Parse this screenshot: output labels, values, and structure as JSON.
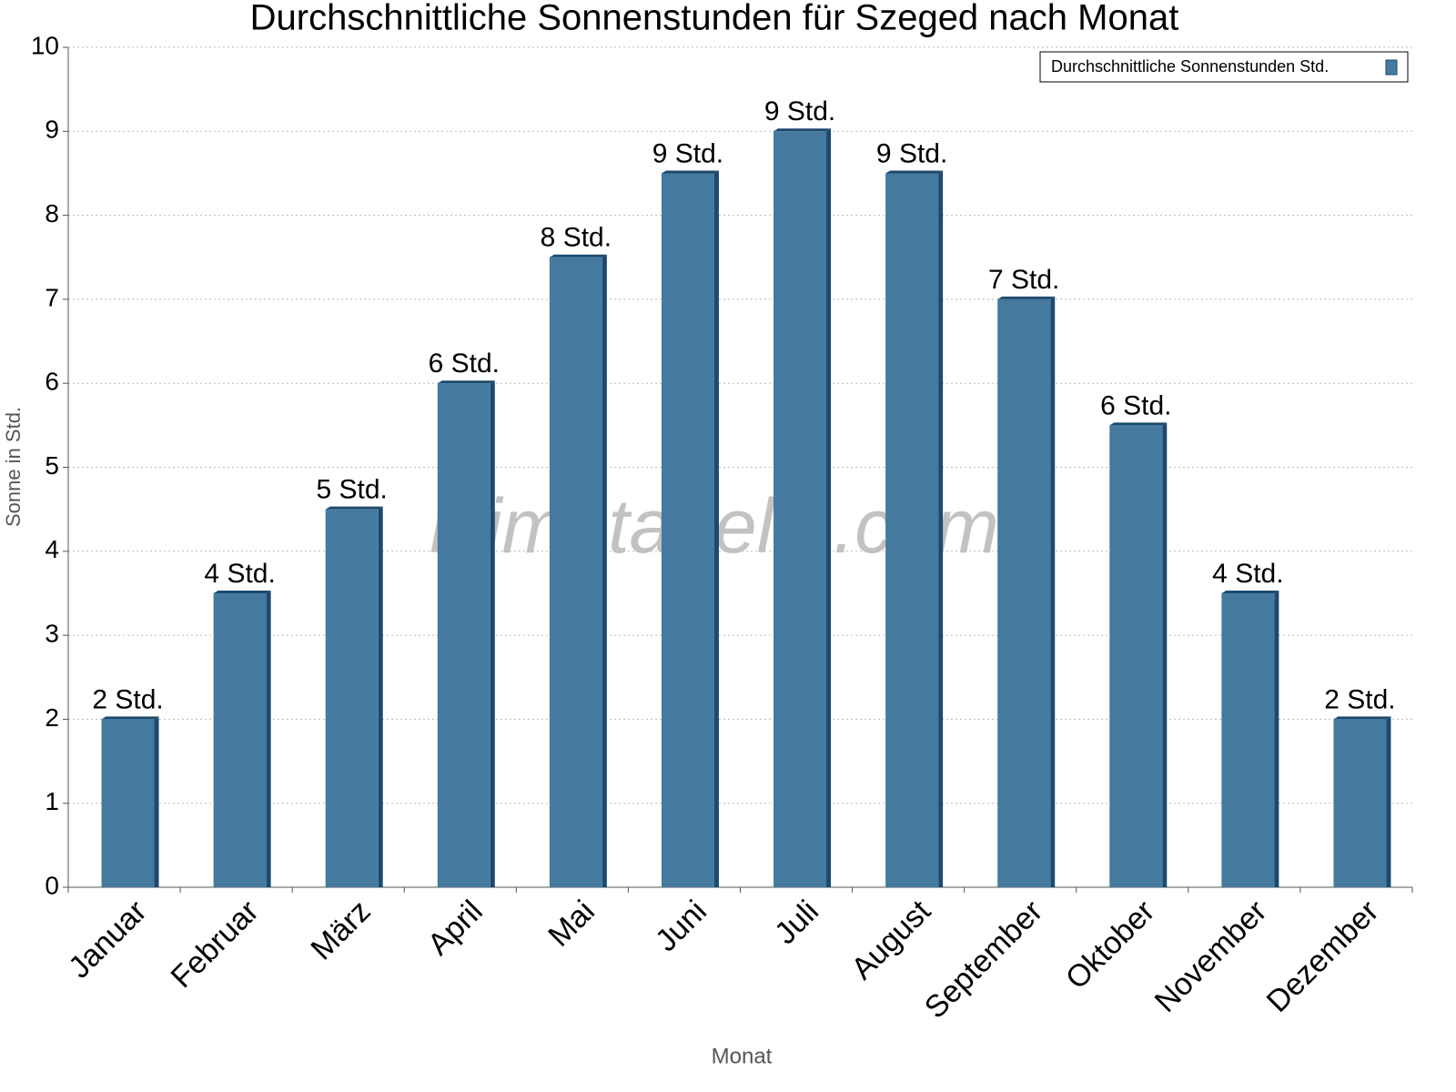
{
  "chart_data": {
    "type": "bar",
    "title": "Durchschnittliche Sonnenstunden für Szeged nach Monat",
    "x_label": "Monat",
    "y_label": "Sonne in Std.",
    "watermark": "klimatabelle.com",
    "categories": [
      "Januar",
      "Februar",
      "März",
      "April",
      "Mai",
      "Juni",
      "Juli",
      "August",
      "September",
      "Oktober",
      "November",
      "Dezember"
    ],
    "series": [
      {
        "name": "Durchschnittliche Sonnenstunden Std.",
        "color": "#457a9e",
        "values": [
          2,
          3.5,
          4.5,
          6,
          7.5,
          8.5,
          9,
          8.5,
          7,
          5.5,
          3.5,
          2
        ],
        "value_labels": [
          "2 Std.",
          "4 Std.",
          "5 Std.",
          "6 Std.",
          "8 Std.",
          "9 Std.",
          "9 Std.",
          "9 Std.",
          "7 Std.",
          "6 Std.",
          "4 Std.",
          "2 Std."
        ]
      }
    ],
    "ylim": [
      0,
      10
    ],
    "yticks": [
      0,
      1,
      2,
      3,
      4,
      5,
      6,
      7,
      8,
      9,
      10
    ],
    "grid": true,
    "legend": "top-right"
  }
}
